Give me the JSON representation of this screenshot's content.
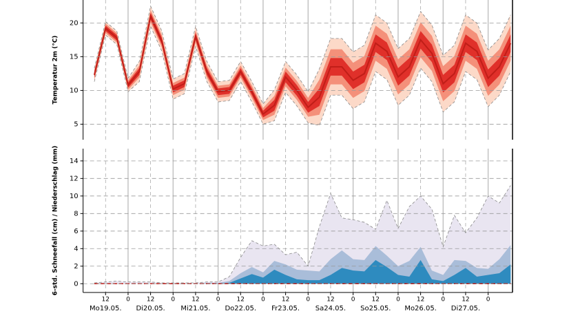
{
  "chart_data": [
    {
      "type": "band",
      "ylabel": "Temperatur 2m (°C)",
      "x": [
        6,
        12,
        18,
        24,
        30,
        36,
        42,
        48,
        54,
        60,
        66,
        72,
        78,
        84,
        90,
        96,
        102,
        108,
        114,
        120,
        126,
        132,
        138,
        144,
        150,
        156,
        162,
        168,
        174,
        180,
        186,
        192,
        198,
        204,
        210,
        216,
        222,
        228
      ],
      "xlim": [
        0,
        229
      ],
      "ylim": [
        2.7,
        23.4
      ],
      "yticks": [
        5,
        10,
        15,
        20
      ],
      "grid": true,
      "bands": [
        {
          "color": "#fcd9c8",
          "edge": "#888888",
          "low": [
            11.3,
            18.2,
            16.8,
            9.8,
            11.3,
            19.5,
            15.8,
            8.7,
            9.5,
            16.5,
            11.3,
            8.3,
            8.5,
            11.3,
            8.3,
            5.0,
            5.5,
            9.7,
            7.7,
            5.2,
            4.8,
            9.3,
            9.3,
            7.3,
            8.3,
            12.8,
            11.6,
            7.8,
            9.3,
            13.3,
            11.3,
            6.8,
            8.3,
            12.8,
            11.6,
            7.6,
            9.3,
            12.8
          ],
          "high": [
            13.3,
            20.2,
            18.8,
            11.8,
            14.3,
            22.5,
            18.8,
            11.7,
            12.5,
            19.5,
            14.3,
            11.3,
            11.5,
            14.3,
            11.3,
            8.0,
            10.1,
            14.3,
            12.3,
            9.8,
            13.2,
            17.7,
            17.7,
            15.7,
            16.7,
            21.2,
            20.0,
            16.2,
            17.7,
            21.7,
            19.7,
            15.2,
            16.7,
            21.2,
            20.0,
            16.0,
            17.7,
            21.2
          ]
        },
        {
          "color": "#f4907a",
          "low": [
            11.6,
            18.5,
            17.1,
            10.1,
            11.9,
            20.1,
            16.4,
            9.3,
            10.1,
            17.1,
            11.9,
            8.9,
            9.1,
            11.9,
            8.9,
            5.6,
            6.4,
            10.6,
            8.6,
            6.1,
            6.4,
            10.9,
            10.9,
            8.9,
            9.9,
            14.4,
            13.2,
            9.4,
            10.9,
            14.9,
            12.9,
            8.4,
            9.9,
            14.4,
            13.2,
            9.2,
            10.9,
            14.4
          ],
          "high": [
            13.0,
            19.9,
            18.5,
            11.5,
            13.7,
            21.9,
            18.2,
            11.1,
            11.9,
            18.9,
            13.7,
            10.7,
            10.9,
            13.7,
            10.7,
            7.4,
            9.2,
            13.4,
            11.4,
            8.9,
            11.6,
            16.1,
            16.1,
            14.1,
            15.1,
            19.6,
            18.4,
            14.6,
            16.1,
            20.1,
            18.1,
            13.6,
            15.1,
            19.6,
            18.4,
            14.4,
            16.1,
            19.6
          ]
        },
        {
          "color": "#e0302a",
          "low": [
            11.9,
            18.8,
            17.4,
            10.4,
            12.3,
            20.5,
            16.8,
            9.7,
            10.5,
            17.5,
            12.3,
            9.3,
            9.5,
            12.3,
            9.3,
            6.0,
            7.0,
            11.2,
            9.2,
            6.7,
            7.7,
            12.2,
            12.2,
            10.2,
            11.2,
            15.7,
            14.5,
            10.7,
            12.2,
            16.2,
            14.2,
            9.7,
            11.2,
            15.7,
            14.5,
            10.5,
            12.2,
            15.7
          ],
          "high": [
            12.7,
            19.6,
            18.2,
            11.2,
            13.3,
            21.5,
            17.8,
            10.7,
            11.5,
            18.5,
            13.3,
            10.3,
            10.5,
            13.3,
            10.3,
            7.0,
            8.6,
            12.8,
            10.8,
            8.3,
            10.3,
            14.8,
            14.8,
            12.8,
            13.8,
            18.3,
            17.1,
            13.3,
            14.8,
            18.8,
            16.8,
            12.3,
            13.8,
            18.3,
            17.1,
            13.1,
            14.8,
            18.3
          ]
        }
      ],
      "series": [
        {
          "color": "#c01e18",
          "values": [
            12.3,
            19.2,
            17.8,
            10.8,
            12.8,
            21.0,
            17.3,
            10.2,
            11.0,
            18.0,
            12.8,
            9.8,
            10.0,
            12.8,
            9.8,
            6.5,
            7.8,
            12.0,
            10.0,
            7.5,
            9.0,
            13.5,
            13.5,
            11.5,
            12.5,
            17.0,
            15.8,
            12.0,
            13.5,
            17.5,
            15.5,
            11.0,
            12.5,
            17.0,
            15.8,
            11.8,
            13.5,
            17.0
          ]
        }
      ]
    },
    {
      "type": "area",
      "ylabel": "6-std. Schneefall (cm) / Niederschlag (mm)",
      "x": [
        6,
        12,
        18,
        24,
        30,
        36,
        42,
        48,
        54,
        60,
        66,
        72,
        78,
        84,
        90,
        96,
        102,
        108,
        114,
        120,
        126,
        132,
        138,
        144,
        150,
        156,
        162,
        168,
        174,
        180,
        186,
        192,
        198,
        204,
        210,
        216,
        222,
        228
      ],
      "xlim": [
        0,
        229
      ],
      "ylim": [
        -1,
        15.4
      ],
      "yticks": [
        0,
        2,
        4,
        6,
        8,
        10,
        12,
        14
      ],
      "grid": true,
      "xticks": [
        12,
        {
          "value": 24,
          "label": "0"
        },
        {
          "value": 36,
          "label": "12"
        },
        {
          "value": 48,
          "label": "0"
        },
        {
          "value": 60,
          "label": "12"
        },
        {
          "value": 72,
          "label": "0"
        },
        {
          "value": 84,
          "label": "12"
        },
        {
          "value": 96,
          "label": "0"
        },
        {
          "value": 108,
          "label": "12"
        },
        {
          "value": 120,
          "label": "0"
        },
        {
          "value": 132,
          "label": "12"
        },
        {
          "value": 144,
          "label": "0"
        },
        {
          "value": 156,
          "label": "12"
        },
        {
          "value": 168,
          "label": "0"
        },
        {
          "value": 180,
          "label": "12"
        },
        {
          "value": 192,
          "label": "0"
        },
        {
          "value": 204,
          "label": "12"
        },
        {
          "value": 216,
          "label": "0"
        }
      ],
      "day_ticks": [
        {
          "value": 12,
          "label": "Mo19.05."
        },
        {
          "value": 36,
          "label": "Di20.05."
        },
        {
          "value": 60,
          "label": "Mi21.05."
        },
        {
          "value": 84,
          "label": "Do22.05."
        },
        {
          "value": 108,
          "label": "Fr23.05."
        },
        {
          "value": 132,
          "label": "Sa24.05."
        },
        {
          "value": 156,
          "label": "So25.05."
        },
        {
          "value": 180,
          "label": "Mo26.05."
        },
        {
          "value": 204,
          "label": "Di27.05."
        }
      ],
      "series": [
        {
          "color": "#e9e5f1",
          "edge": "#888888",
          "values": [
            0.1,
            0.2,
            0.3,
            0.2,
            0.2,
            0.2,
            0.1,
            0.1,
            0.1,
            0.1,
            0.2,
            0.2,
            0.8,
            3.0,
            4.9,
            4.3,
            4.5,
            3.3,
            3.6,
            2.0,
            6.5,
            10.3,
            7.5,
            7.3,
            7.0,
            6.2,
            9.5,
            6.3,
            8.8,
            10.0,
            8.5,
            4.2,
            7.8,
            5.8,
            7.5,
            10.0,
            9.2,
            11.2
          ]
        },
        {
          "color": "#a9bdd9",
          "values": [
            0,
            0,
            0,
            0,
            0,
            0,
            0,
            0,
            0,
            0,
            0.1,
            0.1,
            0.3,
            1.2,
            1.9,
            1.3,
            2.6,
            2.2,
            1.6,
            1.5,
            1.4,
            2.8,
            3.8,
            2.8,
            2.7,
            4.3,
            3.2,
            2.0,
            2.6,
            4.2,
            1.5,
            1.0,
            2.7,
            2.6,
            1.8,
            1.7,
            2.8,
            4.4
          ]
        },
        {
          "color": "#2e8bbf",
          "values": [
            0,
            0,
            0,
            0,
            0,
            0,
            0,
            0,
            0,
            0,
            0,
            0,
            0.1,
            0.6,
            1.1,
            0.7,
            1.6,
            1.0,
            0.5,
            0.4,
            0.4,
            1.0,
            1.8,
            1.5,
            1.4,
            2.7,
            1.9,
            1.0,
            0.8,
            2.7,
            0.5,
            0.3,
            1.0,
            1.8,
            0.8,
            1.0,
            1.2,
            2.2
          ]
        }
      ],
      "median": {
        "color": "#c01e18",
        "values": [
          0,
          0,
          0,
          0,
          0,
          0,
          0,
          0,
          0,
          0,
          0,
          0,
          0,
          0,
          0,
          0,
          0,
          0,
          0,
          0,
          0,
          0,
          0,
          0,
          0,
          0,
          0,
          0,
          0,
          0,
          0,
          0,
          0,
          0,
          0,
          0,
          0,
          0
        ]
      }
    }
  ]
}
